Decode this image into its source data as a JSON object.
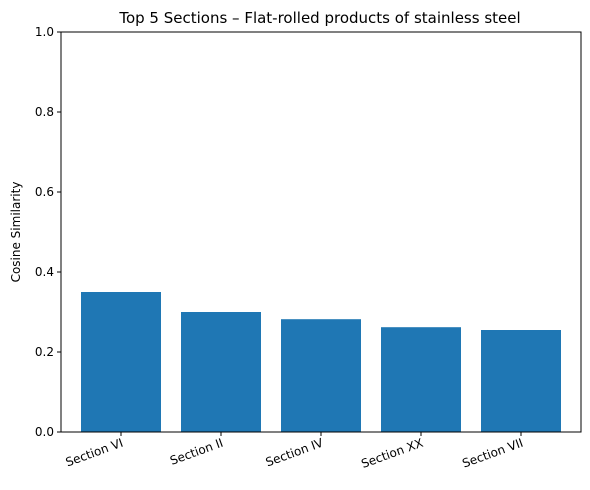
{
  "chart_data": {
    "type": "bar",
    "title": "Top 5 Sections – Flat-rolled products of stainless steel",
    "xlabel": "",
    "ylabel": "Cosine Similarity",
    "categories": [
      "Section VI",
      "Section II",
      "Section IV",
      "Section XX",
      "Section VII"
    ],
    "values": [
      0.35,
      0.3,
      0.282,
      0.262,
      0.255
    ],
    "ylim": [
      0,
      1.0
    ],
    "yticks": [
      "0.0",
      "0.2",
      "0.4",
      "0.6",
      "0.8",
      "1.0"
    ],
    "bar_color": "#1f77b4",
    "grid": false,
    "legend": false
  }
}
